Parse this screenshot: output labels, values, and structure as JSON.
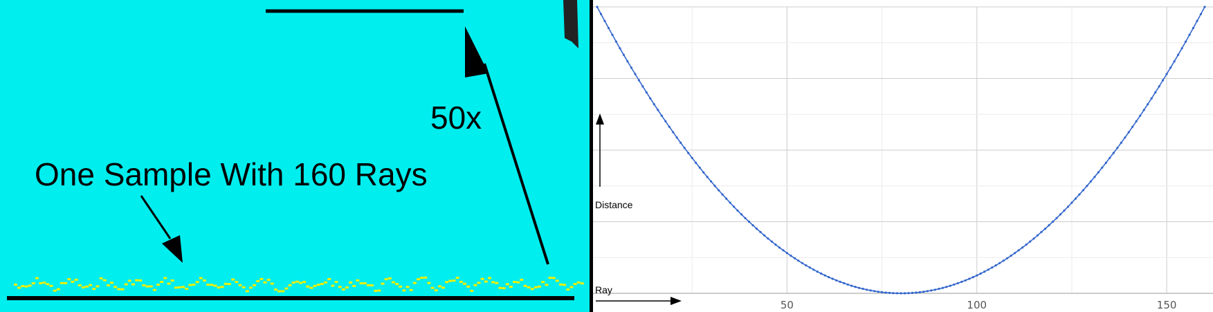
{
  "left_panel": {
    "sample_caption": "One Sample With 160 Rays",
    "scale_label": "50x",
    "colors": {
      "cyan": "#00eeee",
      "magenta": "#ee00ee",
      "samples": "#f4f000"
    }
  },
  "chart_data": {
    "type": "line",
    "title": "",
    "xlabel": "Ray",
    "ylabel": "Distance",
    "xlim": [
      0,
      160
    ],
    "ylim": [
      0,
      1
    ],
    "x_ticks": [
      50,
      100,
      150
    ],
    "x_tick_labels": [
      "50",
      "100",
      "150"
    ],
    "grid": true,
    "line_color": "#3366cc",
    "series": [
      {
        "shape": "parabola",
        "vertex_x": 80,
        "vertex_y": 0,
        "endpoint_y": 1,
        "n_points": 161
      }
    ]
  }
}
